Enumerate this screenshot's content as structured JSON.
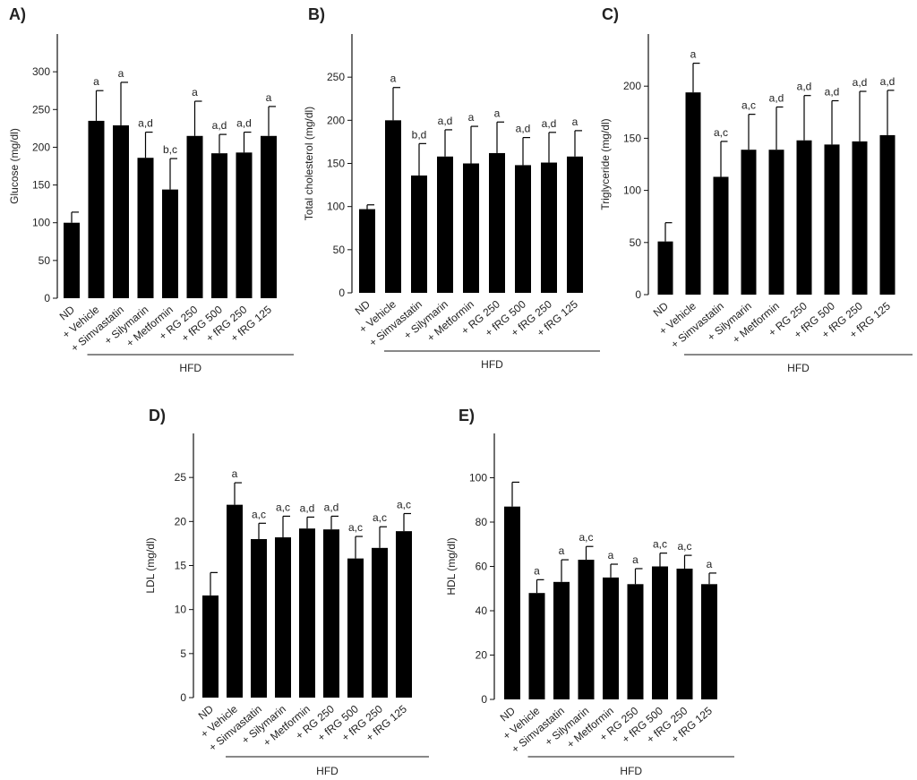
{
  "chart_data": [
    {
      "type": "bar",
      "panel": "A)",
      "title": "",
      "ylabel": "Glucose (mg/dl)",
      "ylim": [
        0,
        350
      ],
      "yticks": [
        0,
        50,
        100,
        150,
        200,
        250,
        300
      ],
      "categories": [
        "ND",
        "+ Vehicle",
        "+ Simvastatin",
        "+ Silymarin",
        "+ Metformin",
        "+ RG 250",
        "+ fRG 500",
        "+ fRG 250",
        "+ fRG 125"
      ],
      "values": [
        100,
        235,
        229,
        186,
        144,
        215,
        192,
        193,
        215
      ],
      "errors": [
        14,
        40,
        57,
        34,
        41,
        46,
        25,
        27,
        39
      ],
      "significance": [
        "",
        "a",
        "a",
        "a,d",
        "b,c",
        "a",
        "a,d",
        "a,d",
        "a"
      ],
      "group_label": "HFD"
    },
    {
      "type": "bar",
      "panel": "B)",
      "title": "",
      "ylabel": "Total cholesterol (mg/dl)",
      "ylim": [
        0,
        300
      ],
      "yticks": [
        0,
        50,
        100,
        150,
        200,
        250
      ],
      "categories": [
        "ND",
        "+ Vehicle",
        "+ Simvastatin",
        "+ Silymarin",
        "+ Metformin",
        "+ RG 250",
        "+ fRG 500",
        "+ fRG 250",
        "+ fRG 125"
      ],
      "values": [
        97,
        200,
        136,
        158,
        150,
        162,
        148,
        151,
        158
      ],
      "errors": [
        5,
        38,
        37,
        31,
        43,
        36,
        32,
        35,
        30
      ],
      "significance": [
        "",
        "a",
        "b,d",
        "a,d",
        "a",
        "a",
        "a,d",
        "a,d",
        "a"
      ],
      "group_label": "HFD"
    },
    {
      "type": "bar",
      "panel": "C)",
      "title": "",
      "ylabel": "Triglyceride (mg/dl)",
      "ylim": [
        0,
        250
      ],
      "yticks": [
        0,
        50,
        100,
        150,
        200
      ],
      "categories": [
        "ND",
        "+ Vehicle",
        "+ Simvastatin",
        "+ Silymarin",
        "+ Metformin",
        "+ RG 250",
        "+ fRG 500",
        "+ fRG 250",
        "+ fRG 125"
      ],
      "values": [
        51,
        194,
        113,
        139,
        139,
        148,
        144,
        147,
        153
      ],
      "errors": [
        18,
        28,
        34,
        34,
        41,
        43,
        42,
        48,
        43
      ],
      "significance": [
        "",
        "a",
        "a,c",
        "a,c",
        "a,d",
        "a,d",
        "a,d",
        "a,d",
        "a,d"
      ],
      "group_label": "HFD"
    },
    {
      "type": "bar",
      "panel": "D)",
      "title": "",
      "ylabel": "LDL (mg/dl)",
      "ylim": [
        0,
        30
      ],
      "yticks": [
        0,
        5,
        10,
        15,
        20,
        25
      ],
      "categories": [
        "ND",
        "+ Vehicle",
        "+ Simvastatin",
        "+ Silymarin",
        "+ Metformin",
        "+ RG 250",
        "+ fRG 500",
        "+ fRG 250",
        "+ fRG 125"
      ],
      "values": [
        11.6,
        21.9,
        18.0,
        18.2,
        19.2,
        19.1,
        15.8,
        17.0,
        18.9
      ],
      "errors": [
        2.6,
        2.5,
        1.8,
        2.4,
        1.3,
        1.5,
        2.5,
        2.4,
        2.0
      ],
      "significance": [
        "",
        "a",
        "a,c",
        "a,c",
        "a,d",
        "a,d",
        "a,c",
        "a,c",
        "a,c"
      ],
      "group_label": "HFD"
    },
    {
      "type": "bar",
      "panel": "E)",
      "title": "",
      "ylabel": "HDL (mg/dl)",
      "ylim": [
        0,
        120
      ],
      "yticks": [
        0,
        20,
        40,
        60,
        80,
        100
      ],
      "categories": [
        "ND",
        "+ Vehicle",
        "+ Simvastatin",
        "+ Silymarin",
        "+ Metformin",
        "+ RG 250",
        "+ fRG 500",
        "+ fRG 250",
        "+ fRG 125"
      ],
      "values": [
        87,
        48,
        53,
        63,
        55,
        52,
        60,
        59,
        52
      ],
      "errors": [
        11,
        6,
        10,
        6,
        6,
        7,
        6,
        6,
        5
      ],
      "significance": [
        "",
        "a",
        "a",
        "a,c",
        "a",
        "a",
        "a,c",
        "a,c",
        "a"
      ],
      "group_label": "HFD"
    }
  ]
}
